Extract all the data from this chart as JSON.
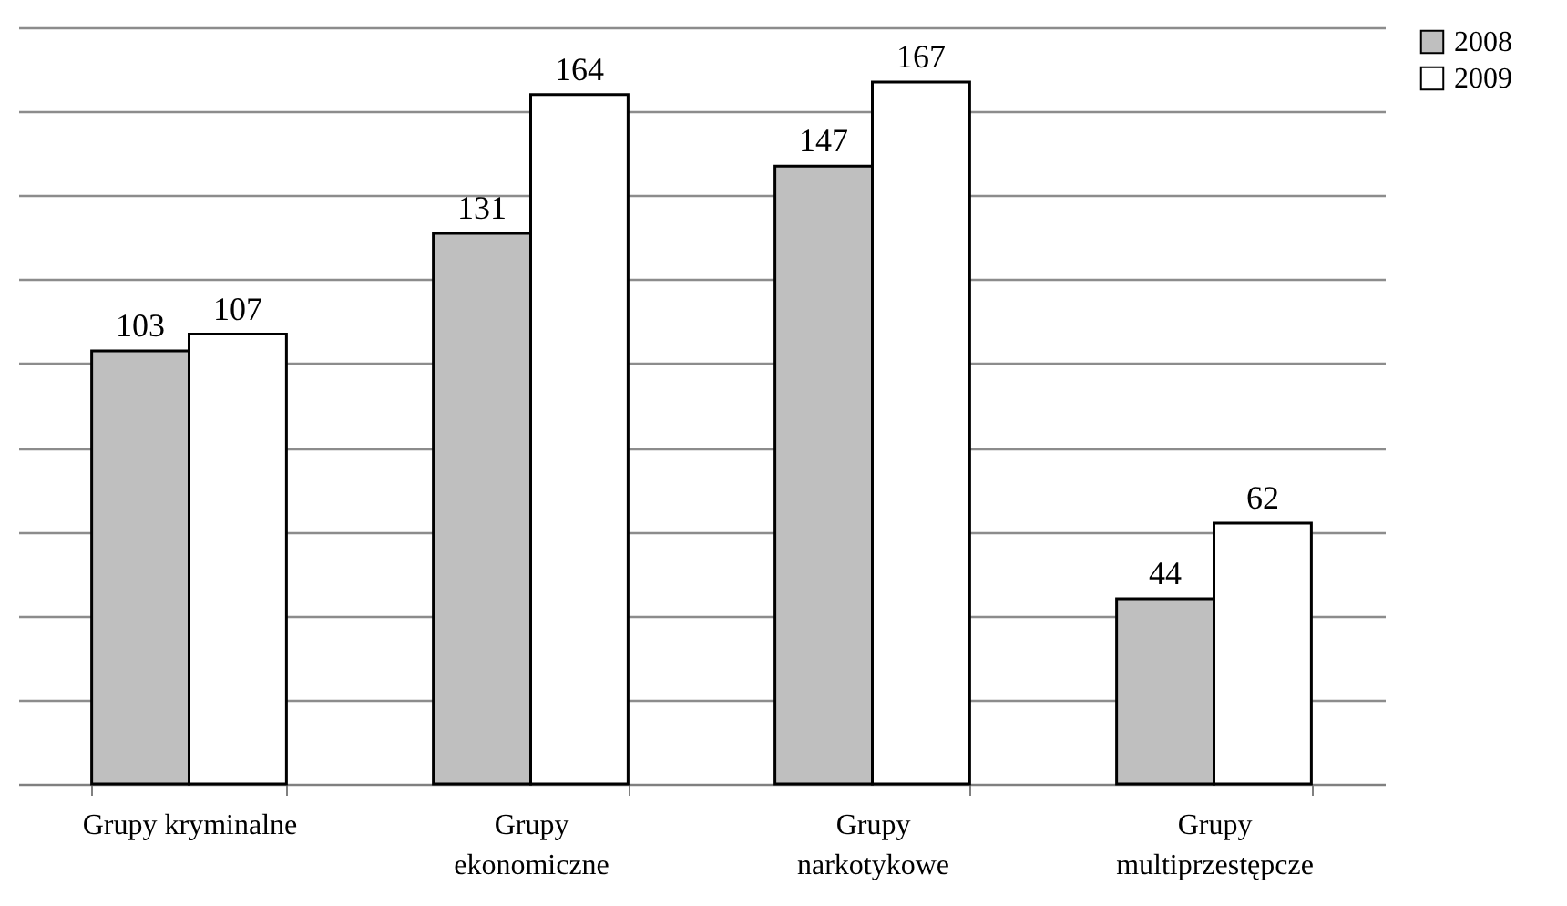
{
  "chart_data": {
    "type": "bar",
    "categories": [
      "Grupy kryminalne",
      "Grupy\nekonomiczne",
      "Grupy\nnarkotykowe",
      "Grupy\nmultiprzestępcze"
    ],
    "series": [
      {
        "name": "2008",
        "color": "#bfbfbf",
        "values": [
          103,
          131,
          147,
          44
        ]
      },
      {
        "name": "2009",
        "color": "#ffffff",
        "values": [
          107,
          164,
          167,
          62
        ]
      }
    ],
    "ylim": [
      0,
      180
    ],
    "yticks": [
      {
        "value": 0,
        "label": null
      },
      {
        "value": 20,
        "label": null
      },
      {
        "value": 40,
        "label": null
      },
      {
        "value": 60,
        "label": null
      },
      {
        "value": 80,
        "label": null
      },
      {
        "value": 100,
        "label": null
      },
      {
        "value": 120,
        "label": null
      },
      {
        "value": 140,
        "label": null
      },
      {
        "value": 160,
        "label": null
      },
      {
        "value": 180,
        "label": null
      }
    ],
    "grid": "y",
    "tick_labels": "x",
    "data_labels": true,
    "legend": "right"
  }
}
